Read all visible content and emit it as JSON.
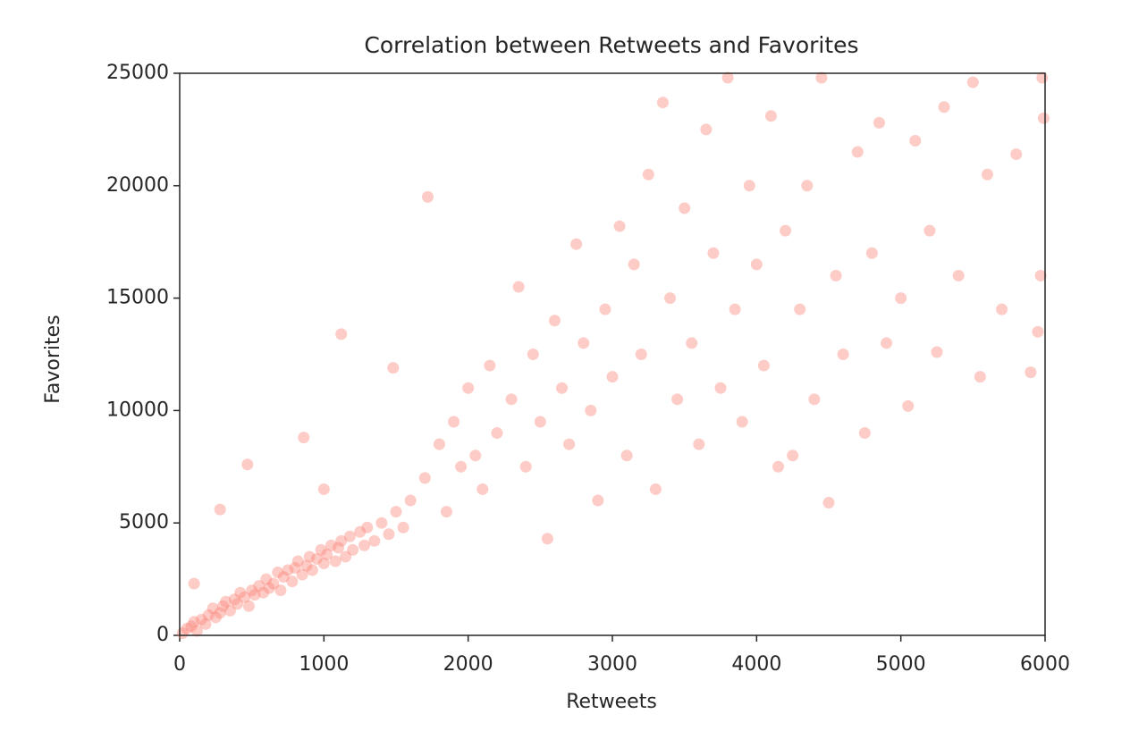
{
  "chart_data": {
    "type": "scatter",
    "title": "Correlation between Retweets and Favorites",
    "x_label": "Retweets",
    "y_label": "Favorites",
    "color": "#fa8072",
    "xlim": [
      0,
      6000
    ],
    "xticks": [
      0,
      1000,
      2000,
      3000,
      4000,
      5000,
      6000
    ],
    "ylim": [
      0,
      25000
    ],
    "yticks": [
      0,
      5000,
      10000,
      15000,
      20000,
      25000
    ],
    "grid": false,
    "x": [
      20,
      50,
      80,
      100,
      120,
      150,
      180,
      200,
      230,
      250,
      280,
      300,
      320,
      350,
      380,
      400,
      420,
      450,
      480,
      500,
      520,
      550,
      580,
      600,
      620,
      650,
      680,
      700,
      720,
      750,
      780,
      800,
      820,
      850,
      880,
      900,
      920,
      950,
      980,
      1000,
      1020,
      1050,
      1080,
      1100,
      1120,
      1150,
      1180,
      1200,
      1250,
      1280,
      1300,
      1350,
      1400,
      1450,
      1500,
      1550,
      100,
      280,
      470,
      860,
      1120,
      1720,
      1480,
      1000,
      1600,
      1700,
      1800,
      1850,
      1900,
      1950,
      2000,
      2050,
      2100,
      2150,
      2200,
      2300,
      2350,
      2400,
      2450,
      2500,
      2550,
      2600,
      2650,
      2700,
      2750,
      2800,
      2850,
      2900,
      2950,
      3000,
      3050,
      3100,
      3150,
      3200,
      3250,
      3300,
      3350,
      3400,
      3450,
      3500,
      3550,
      3600,
      3650,
      3700,
      3750,
      3800,
      3850,
      3900,
      3950,
      4000,
      4050,
      4100,
      4150,
      4200,
      4300,
      4350,
      4400,
      4450,
      4500,
      4550,
      4600,
      4700,
      4750,
      4800,
      4850,
      4900,
      5000,
      5050,
      5100,
      5200,
      5250,
      5300,
      5400,
      5500,
      5550,
      5600,
      5700,
      5800,
      5900,
      5970,
      5980,
      5990,
      5950,
      4250
    ],
    "values": [
      100,
      300,
      400,
      600,
      200,
      700,
      500,
      900,
      1200,
      800,
      1000,
      1300,
      1500,
      1100,
      1600,
      1400,
      1900,
      1700,
      1300,
      2000,
      1800,
      2200,
      1900,
      2500,
      2100,
      2300,
      2800,
      2000,
      2600,
      2900,
      2400,
      3000,
      3300,
      2700,
      3100,
      3500,
      2900,
      3400,
      3800,
      3200,
      3600,
      4000,
      3300,
      3900,
      4200,
      3500,
      4400,
      3800,
      4600,
      4000,
      4800,
      4200,
      5000,
      4500,
      5500,
      4800,
      2300,
      5600,
      7600,
      8800,
      13400,
      19500,
      11900,
      6500,
      6000,
      7000,
      8500,
      5500,
      9500,
      7500,
      11000,
      8000,
      6500,
      12000,
      9000,
      10500,
      15500,
      7500,
      12500,
      9500,
      4300,
      14000,
      11000,
      8500,
      17400,
      13000,
      10000,
      6000,
      14500,
      11500,
      18200,
      8000,
      16500,
      12500,
      20500,
      6500,
      23700,
      15000,
      10500,
      19000,
      13000,
      8500,
      22500,
      17000,
      11000,
      24800,
      14500,
      9500,
      20000,
      16500,
      12000,
      23100,
      7500,
      18000,
      14500,
      20000,
      10500,
      24800,
      5900,
      16000,
      12500,
      21500,
      9000,
      17000,
      22800,
      13000,
      15000,
      10200,
      22000,
      18000,
      12600,
      23500,
      16000,
      24600,
      11500,
      20500,
      14500,
      21400,
      11700,
      16000,
      24800,
      23000,
      13500,
      8000
    ]
  }
}
